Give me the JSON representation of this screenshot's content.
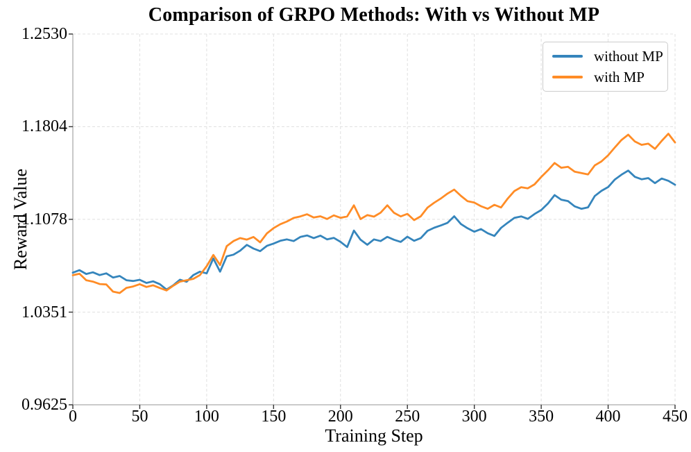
{
  "figure": {
    "background": "#ffffff"
  },
  "colors": {
    "series_without_mp": "#3585bc",
    "series_with_mp": "#ff8c26",
    "grid": "#e0e0e0",
    "spine": "#aaaaaa",
    "tick_mark": "#333333",
    "text": "#000000",
    "legend_border": "#cccccc",
    "legend_background": "#ffffff"
  },
  "chart_data": {
    "type": "line",
    "title": "Comparison of GRPO Methods: With vs Without MP",
    "xlabel": "Training Step",
    "ylabel": "Reward Value",
    "xlim": [
      0,
      450
    ],
    "ylim": [
      0.9625,
      1.253
    ],
    "x_ticks": [
      0,
      50,
      100,
      150,
      200,
      250,
      300,
      350,
      400,
      450
    ],
    "y_ticks": [
      {
        "value": 1.253,
        "label": "1.2530"
      },
      {
        "value": 1.1804,
        "label": "1.1804"
      },
      {
        "value": 1.1078,
        "label": "1.1078"
      },
      {
        "value": 1.0351,
        "label": "1.0351"
      },
      {
        "value": 0.9625,
        "label": "0.9625"
      }
    ],
    "grid": "dashed on both axes",
    "legend_position": "upper right",
    "x": [
      0,
      5,
      10,
      15,
      20,
      25,
      30,
      35,
      40,
      45,
      50,
      55,
      60,
      65,
      70,
      75,
      80,
      85,
      90,
      95,
      100,
      105,
      110,
      115,
      120,
      125,
      130,
      135,
      140,
      145,
      150,
      155,
      160,
      165,
      170,
      175,
      180,
      185,
      190,
      195,
      200,
      205,
      210,
      215,
      220,
      225,
      230,
      235,
      240,
      245,
      250,
      255,
      260,
      265,
      270,
      275,
      280,
      285,
      290,
      295,
      300,
      305,
      310,
      315,
      320,
      325,
      330,
      335,
      340,
      345,
      350,
      355,
      360,
      365,
      370,
      375,
      380,
      385,
      390,
      395,
      400,
      405,
      410,
      415,
      420,
      425,
      430,
      435,
      440,
      445,
      450
    ],
    "series": [
      {
        "id": "without-mp",
        "name": "without MP",
        "color": "#3585bc",
        "values": [
          1.066,
          1.068,
          1.065,
          1.0663,
          1.0641,
          1.0655,
          1.0622,
          1.0634,
          1.0601,
          1.0595,
          1.0604,
          1.058,
          1.0592,
          1.057,
          1.0528,
          1.0561,
          1.0605,
          1.0589,
          1.0641,
          1.0668,
          1.0655,
          1.0772,
          1.0668,
          1.0788,
          1.0801,
          1.0832,
          1.0878,
          1.0849,
          1.0829,
          1.087,
          1.0888,
          1.091,
          1.0921,
          1.0908,
          1.094,
          1.0952,
          1.0931,
          1.095,
          1.0921,
          1.0933,
          1.0902,
          1.0861,
          1.099,
          1.0918,
          1.0879,
          1.0921,
          1.0908,
          1.0941,
          1.0918,
          1.0901,
          1.0942,
          1.091,
          1.0931,
          1.0988,
          1.1012,
          1.103,
          1.1051,
          1.1102,
          1.1041,
          1.1008,
          1.0981,
          1.1002,
          1.0969,
          1.0948,
          1.1011,
          1.1052,
          1.109,
          1.1101,
          1.1082,
          1.112,
          1.1151,
          1.1202,
          1.1268,
          1.1232,
          1.1221,
          1.118,
          1.1161,
          1.1172,
          1.1261,
          1.1301,
          1.1331,
          1.139,
          1.1428,
          1.146,
          1.1411,
          1.1392,
          1.1401,
          1.1362,
          1.1398,
          1.138,
          1.1349
        ]
      },
      {
        "id": "with-mp",
        "name": "with MP",
        "color": "#ff8c26",
        "values": [
          1.064,
          1.0652,
          1.0601,
          1.059,
          1.0571,
          1.0568,
          1.0512,
          1.0501,
          1.0541,
          1.0552,
          1.057,
          1.0548,
          1.0561,
          1.054,
          1.0521,
          1.0558,
          1.059,
          1.0601,
          1.0612,
          1.0641,
          1.0711,
          1.0799,
          1.072,
          1.0868,
          1.0908,
          1.0931,
          1.0919,
          1.094,
          1.0898,
          1.0968,
          1.1009,
          1.104,
          1.1061,
          1.1089,
          1.1101,
          1.1118,
          1.1092,
          1.1102,
          1.1081,
          1.1109,
          1.109,
          1.1101,
          1.1188,
          1.108,
          1.1111,
          1.1099,
          1.113,
          1.1188,
          1.1129,
          1.1101,
          1.1121,
          1.1072,
          1.1102,
          1.117,
          1.1208,
          1.1241,
          1.128,
          1.1311,
          1.1262,
          1.122,
          1.1209,
          1.1181,
          1.1161,
          1.1192,
          1.1171,
          1.1241,
          1.13,
          1.133,
          1.1321,
          1.1352,
          1.141,
          1.1462,
          1.152,
          1.1482,
          1.149,
          1.1452,
          1.1441,
          1.143,
          1.1501,
          1.1532,
          1.158,
          1.1641,
          1.17,
          1.1741,
          1.1688,
          1.1662,
          1.1671,
          1.163,
          1.1692,
          1.1749,
          1.1681
        ]
      }
    ]
  }
}
